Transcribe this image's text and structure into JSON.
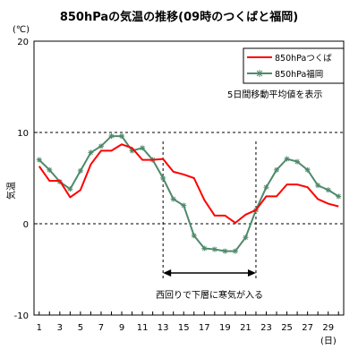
{
  "title": "850hPaの気温の推移(09時のつくばと福岡)",
  "chart_data": {
    "type": "line",
    "title": "850hPaの気温の推移(09時のつくばと福岡)",
    "ylabel": "気温",
    "y_unit": "(℃)",
    "x_unit": "(日)",
    "ylim": [
      -10,
      20
    ],
    "xlim": [
      0.5,
      30.5
    ],
    "y_ticks": [
      20,
      10,
      0,
      -10
    ],
    "x_ticks": [
      1,
      3,
      5,
      7,
      9,
      11,
      13,
      15,
      17,
      19,
      21,
      23,
      25,
      27,
      29
    ],
    "dashed_gridlines_y": [
      10,
      0
    ],
    "x": [
      1,
      2,
      3,
      4,
      5,
      6,
      7,
      8,
      9,
      10,
      11,
      12,
      13,
      14,
      15,
      16,
      17,
      18,
      19,
      20,
      21,
      22,
      23,
      24,
      25,
      26,
      27,
      28,
      29,
      30
    ],
    "series": [
      {
        "name": "850hPaつくば",
        "color": "#ff0000",
        "marker": "none",
        "values": [
          6.3,
          4.7,
          4.7,
          2.9,
          3.7,
          6.5,
          8.0,
          8.0,
          8.7,
          8.3,
          7.0,
          7.0,
          7.1,
          5.7,
          5.4,
          5.0,
          2.6,
          0.9,
          0.9,
          0.1,
          1.0,
          1.5,
          3.0,
          3.0,
          4.3,
          4.3,
          4.0,
          2.7,
          2.2,
          1.9
        ]
      },
      {
        "name": "850hPa福岡",
        "color": "#4f8a6b",
        "marker": "asterisk",
        "values": [
          7.0,
          5.9,
          4.6,
          3.8,
          5.8,
          7.8,
          8.5,
          9.6,
          9.6,
          8.0,
          8.3,
          7.0,
          5.0,
          2.7,
          2.0,
          -1.3,
          -2.7,
          -2.8,
          -3.0,
          -3.0,
          -1.5,
          1.5,
          4.0,
          5.9,
          7.1,
          6.8,
          5.9,
          4.2,
          3.7,
          3.0
        ]
      }
    ],
    "legend_position": "top-right",
    "annotations": {
      "moving_average_note": "5日間移動平均値を表示",
      "period_note": "西回りで下層に寒気が入る",
      "period_start_day": 13,
      "period_end_day": 22
    }
  }
}
